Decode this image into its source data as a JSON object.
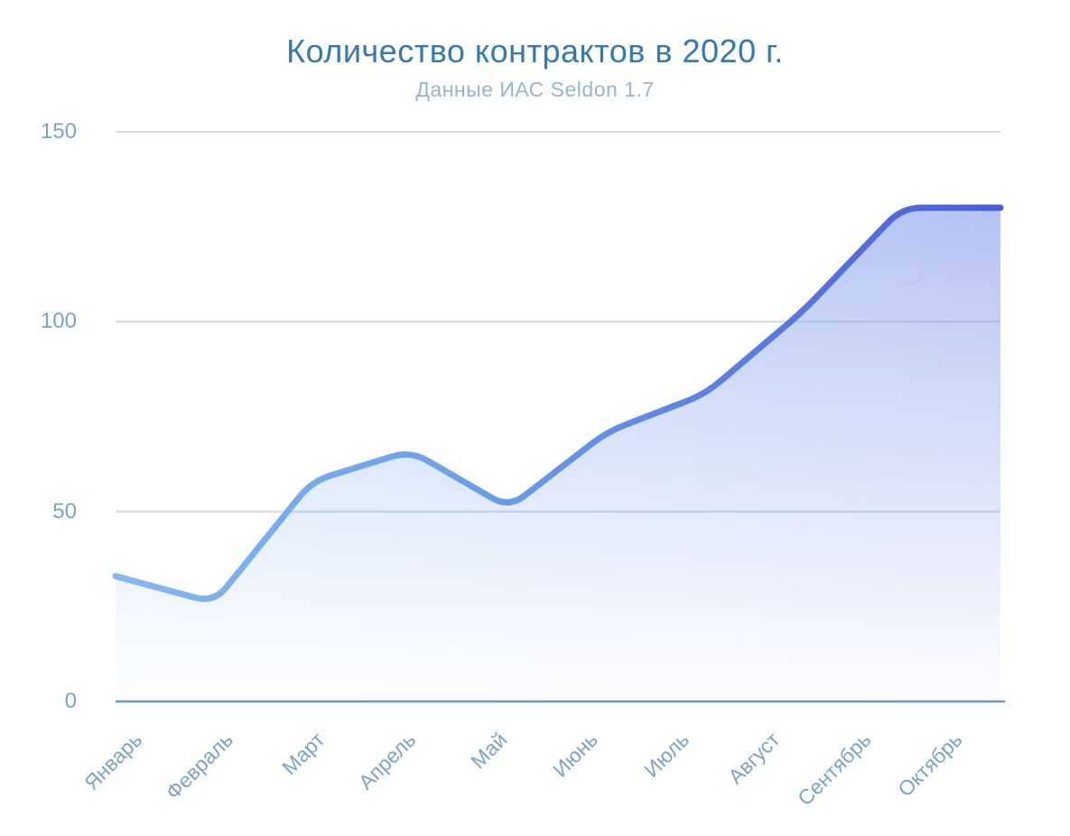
{
  "chart_data": {
    "type": "area",
    "title": "Количество контрактов в 2020 г.",
    "subtitle": "Данные ИАС Seldon 1.7",
    "categories": [
      "Январь",
      "Февраль",
      "Март",
      "Апрель",
      "Май",
      "Июнь",
      "Июль",
      "Август",
      "Сентябрь",
      "Октябрь"
    ],
    "values": [
      33,
      26,
      58,
      66,
      51,
      71,
      81,
      103,
      130,
      130
    ],
    "series_name": "Количество контрактов",
    "xlabel": "",
    "ylabel": "",
    "ylim": [
      0,
      150
    ],
    "yticks": [
      0,
      50,
      100,
      150
    ],
    "grid": true,
    "legend_position": "none",
    "colors": {
      "title": "#3579ad",
      "subtitle": "#97b4cd",
      "axis_label": "#7aa3c6",
      "gridline": "#cdd8e0",
      "axis_line": "#6f96b6",
      "line_gradient": [
        "#86b7ef",
        "#6ba0e8",
        "#5b7ee0",
        "#4a5dd5"
      ],
      "fill_gradient": [
        "#93c0ee",
        "#7e94ea"
      ]
    }
  }
}
